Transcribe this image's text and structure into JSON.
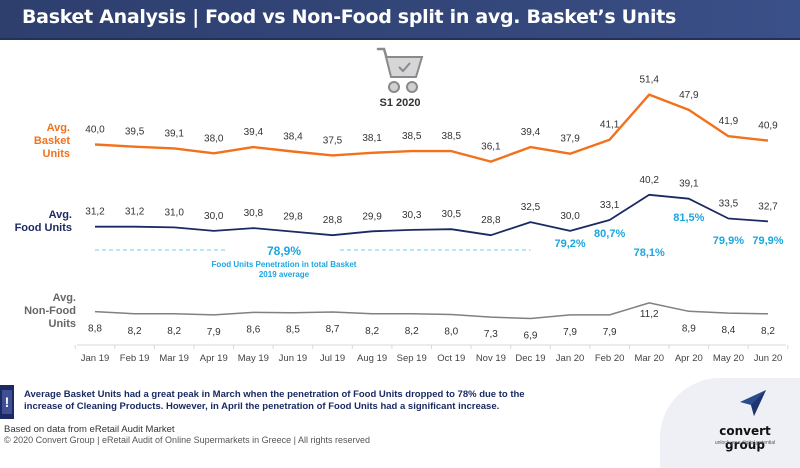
{
  "header": {
    "title": "Basket Analysis | Food vs Non-Food split in avg. Basket’s Units"
  },
  "period_badge": {
    "icon": "shopping-cart-check-icon",
    "label": "S1 2020"
  },
  "series_labels": {
    "basket": [
      "Avg.",
      "Basket Units"
    ],
    "food": [
      "Avg.",
      "Food Units"
    ],
    "nonfood": [
      "Avg.",
      "Non-Food Units"
    ]
  },
  "chart_data": {
    "type": "line",
    "title": "Basket Analysis | Food vs Non-Food split in avg. Basket’s Units",
    "xlabel": "",
    "ylabel": "",
    "categories": [
      "Jan 19",
      "Feb 19",
      "Mar 19",
      "Apr 19",
      "May 19",
      "Jun 19",
      "Jul 19",
      "Aug 19",
      "Sep 19",
      "Oct 19",
      "Nov 19",
      "Dec 19",
      "Jan 20",
      "Feb 20",
      "Mar 20",
      "Apr 20",
      "May 20",
      "Jun 20"
    ],
    "series": [
      {
        "name": "Avg. Basket Units",
        "color": "#f2711c",
        "values": [
          40.0,
          39.5,
          39.1,
          38.0,
          39.4,
          38.4,
          37.5,
          38.1,
          38.5,
          38.5,
          36.1,
          39.4,
          37.9,
          41.1,
          51.4,
          47.9,
          41.9,
          40.9
        ],
        "labels": [
          "40,0",
          "39,5",
          "39,1",
          "38,0",
          "39,4",
          "38,4",
          "37,5",
          "38,1",
          "38,5",
          "38,5",
          "36,1",
          "39,4",
          "37,9",
          "41,1",
          "51,4",
          "47,9",
          "41,9",
          "40,9"
        ]
      },
      {
        "name": "Avg. Food Units",
        "color": "#1b2a63",
        "values": [
          31.2,
          31.2,
          31.0,
          30.0,
          30.8,
          29.8,
          28.8,
          29.9,
          30.3,
          30.5,
          28.8,
          32.5,
          30.0,
          33.1,
          40.2,
          39.1,
          33.5,
          32.7
        ],
        "labels": [
          "31,2",
          "31,2",
          "31,0",
          "30,0",
          "30,8",
          "29,8",
          "28,8",
          "29,9",
          "30,3",
          "30,5",
          "28,8",
          "32,5",
          "30,0",
          "33,1",
          "40,2",
          "39,1",
          "33,5",
          "32,7"
        ]
      },
      {
        "name": "Avg. Non-Food Units",
        "color": "#808080",
        "values": [
          8.8,
          8.2,
          8.2,
          7.9,
          8.6,
          8.5,
          8.7,
          8.2,
          8.2,
          8.0,
          7.3,
          6.9,
          7.9,
          7.9,
          11.2,
          8.9,
          8.4,
          8.2
        ],
        "labels": [
          "8,8",
          "8,2",
          "8,2",
          "7,9",
          "8,6",
          "8,5",
          "8,7",
          "8,2",
          "8,2",
          "8,0",
          "7,3",
          "6,9",
          "7,9",
          "7,9",
          "11,2",
          "8,9",
          "8,4",
          "8,2"
        ]
      }
    ],
    "food_penetration": {
      "color": "#1aa7e0",
      "avg_2019": {
        "value": "78,9%",
        "caption": [
          "Food Units Penetration in total Basket",
          "2019 average"
        ]
      },
      "monthly_2020": [
        {
          "month": "Jan 20",
          "value": "79,2%"
        },
        {
          "month": "Feb 20",
          "value": "80,7%"
        },
        {
          "month": "Mar 20",
          "value": "78,1%"
        },
        {
          "month": "Apr 20",
          "value": "81,5%"
        },
        {
          "month": "May 20",
          "value": "79,9%"
        },
        {
          "month": "Jun 20",
          "value": "79,9%"
        }
      ]
    },
    "grid": false,
    "legend": "left-labels"
  },
  "note": {
    "icon": "exclamation-icon",
    "text": "Average Basket Units had a great peak in March when the penetration of Food Units dropped to 78% due to the increase of Cleaning Products. However, in April the penetration of Food Units had a significant increase."
  },
  "footer": {
    "source": "Based on data from eRetail Audit Market",
    "copyright": "© 2020 Convert Group | eRetail Audit of Online Supermarkets in Greece | All rights reserved"
  },
  "logo": {
    "name": "convert group",
    "tagline": "unlock your digital potential"
  }
}
